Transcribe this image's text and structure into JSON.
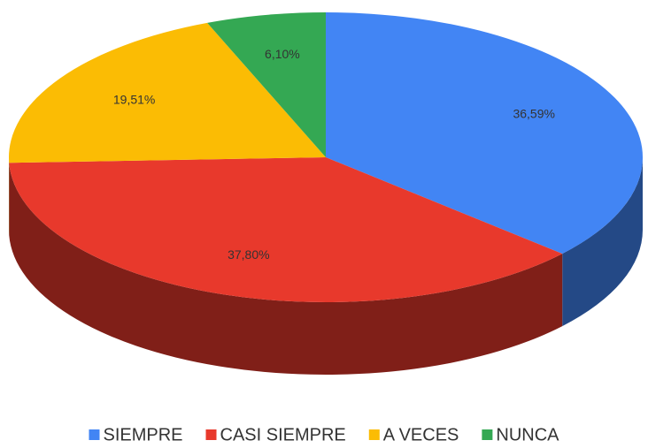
{
  "chart_data": {
    "type": "pie",
    "categories": [
      "SIEMPRE",
      "CASI SIEMPRE",
      "A VECES",
      "NUNCA"
    ],
    "values": [
      36.59,
      37.8,
      19.51,
      6.1
    ],
    "value_labels": [
      "36,59%",
      "37,80%",
      "19,51%",
      "6,10%"
    ],
    "colors": [
      "#4285f4",
      "#e8392c",
      "#fbbc04",
      "#34a853"
    ],
    "legend": "bottom"
  }
}
